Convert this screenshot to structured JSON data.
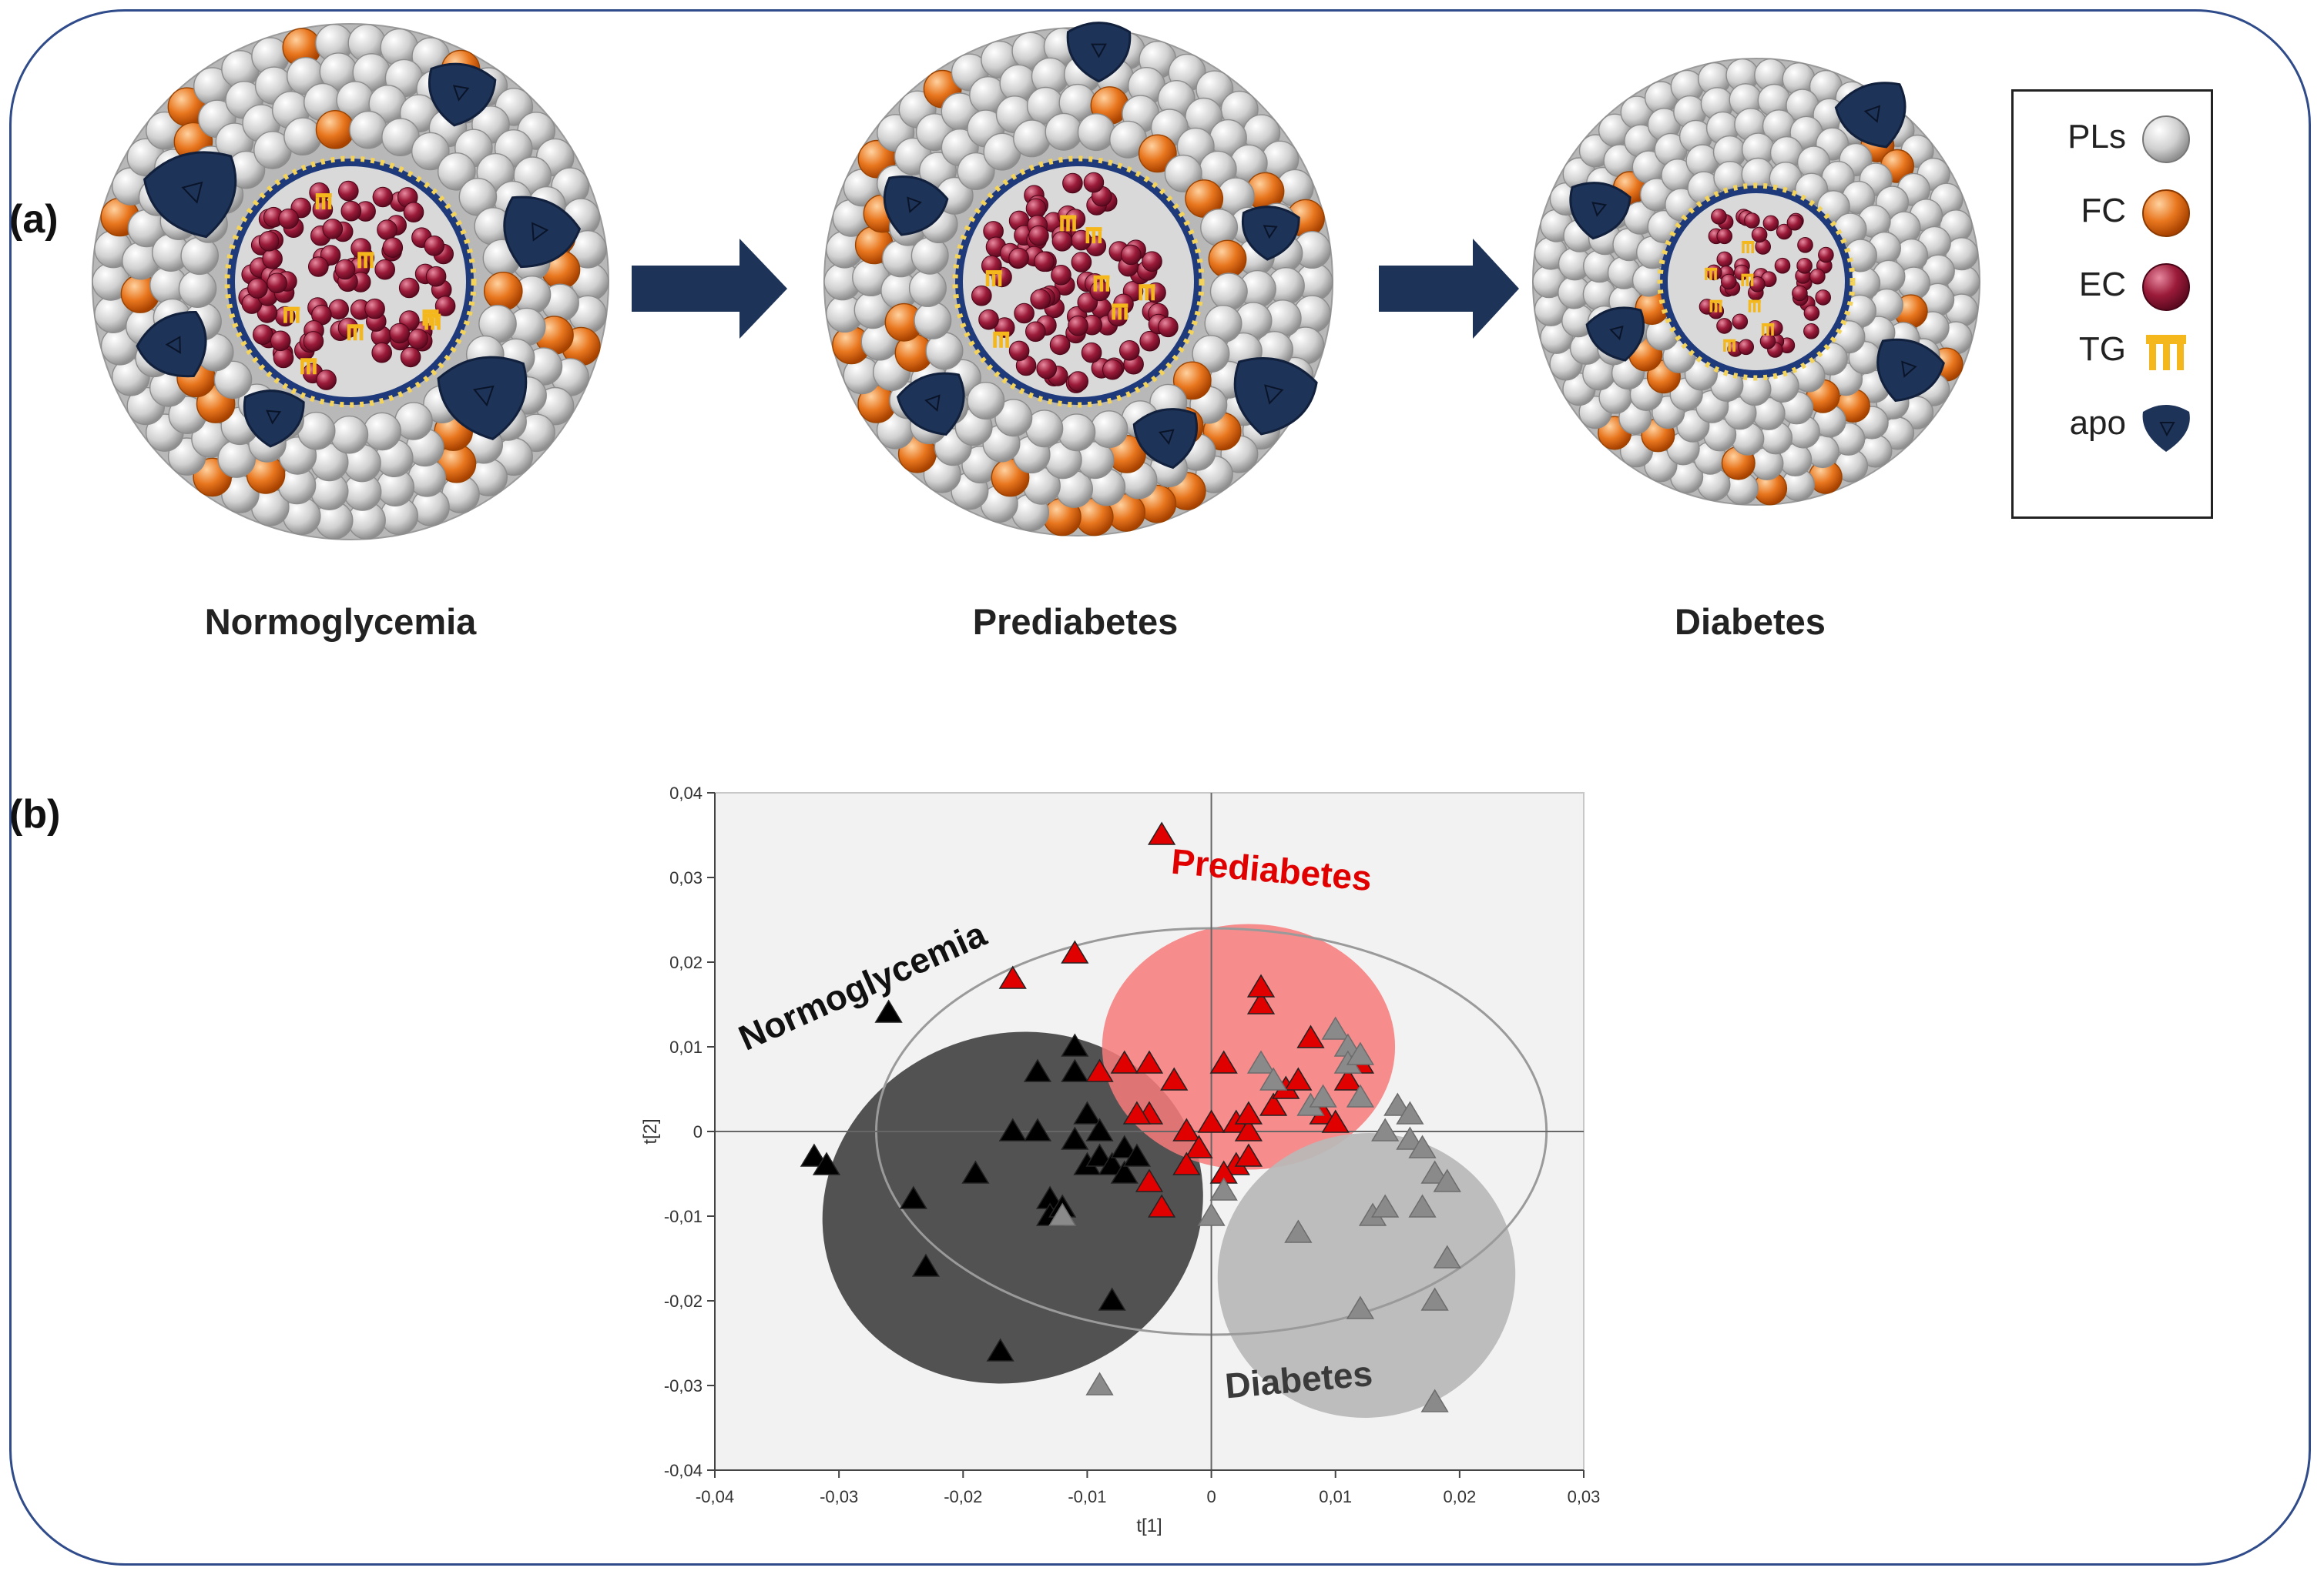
{
  "panels": {
    "a": "(a)",
    "b": "(b)"
  },
  "stages": [
    "Normoglycemia",
    "Prediabetes",
    "Diabetes"
  ],
  "legend": [
    {
      "label": "PLs",
      "icon": "phospholipid-sphere-icon"
    },
    {
      "label": "FC",
      "icon": "free-cholesterol-sphere-icon"
    },
    {
      "label": "EC",
      "icon": "esterified-cholesterol-sphere-icon"
    },
    {
      "label": "TG",
      "icon": "triglyceride-icon"
    },
    {
      "label": "apo",
      "icon": "apolipoprotein-icon"
    }
  ],
  "colors": {
    "frame": "#2f4b8a",
    "apo": "#1e3358",
    "pl": "#cfcfcf",
    "fc": "#e0711f",
    "ec": "#9b1b3a",
    "tg": "#f4b71c",
    "normoglycemia": "#000000",
    "prediabetes": "#e00000",
    "diabetes": "#8a8a8a"
  },
  "chart_data": {
    "type": "scatter",
    "xlabel": "t[1]",
    "ylabel": "t[2]",
    "xlim": [
      -0.04,
      0.03
    ],
    "ylim": [
      -0.04,
      0.04
    ],
    "xticks": [
      "-0,04",
      "-0,03",
      "-0,02",
      "-0,01",
      "0",
      "0,01",
      "0,02",
      "0,03"
    ],
    "yticks": [
      "0,04",
      "0,03",
      "0,02",
      "0,01",
      "0",
      "-0,01",
      "-0,02",
      "-0,03",
      "-0,04"
    ],
    "group_labels": {
      "normoglycemia": "Normoglycemia",
      "prediabetes": "Prediabetes",
      "diabetes": "Diabetes"
    },
    "series": [
      {
        "name": "Normoglycemia",
        "color": "#000000",
        "points": [
          [
            -0.032,
            -0.003
          ],
          [
            -0.031,
            -0.004
          ],
          [
            -0.026,
            0.014
          ],
          [
            -0.024,
            -0.008
          ],
          [
            -0.023,
            -0.016
          ],
          [
            -0.019,
            -0.005
          ],
          [
            -0.017,
            -0.026
          ],
          [
            -0.016,
            0.0
          ],
          [
            -0.014,
            0.007
          ],
          [
            -0.014,
            0.0
          ],
          [
            -0.013,
            -0.008
          ],
          [
            -0.013,
            -0.01
          ],
          [
            -0.012,
            -0.009
          ],
          [
            -0.011,
            -0.001
          ],
          [
            -0.011,
            0.01
          ],
          [
            -0.011,
            0.007
          ],
          [
            -0.01,
            -0.004
          ],
          [
            -0.01,
            0.002
          ],
          [
            -0.009,
            -0.003
          ],
          [
            -0.009,
            0.0
          ],
          [
            -0.008,
            -0.004
          ],
          [
            -0.008,
            -0.02
          ],
          [
            -0.007,
            -0.005
          ],
          [
            -0.007,
            -0.002
          ],
          [
            -0.006,
            -0.003
          ]
        ]
      },
      {
        "name": "Prediabetes",
        "color": "#e00000",
        "points": [
          [
            -0.004,
            0.035
          ],
          [
            -0.016,
            0.018
          ],
          [
            -0.011,
            0.021
          ],
          [
            -0.009,
            0.007
          ],
          [
            -0.007,
            0.008
          ],
          [
            -0.005,
            0.008
          ],
          [
            -0.004,
            -0.009
          ],
          [
            -0.005,
            -0.006
          ],
          [
            -0.003,
            0.006
          ],
          [
            -0.005,
            0.002
          ],
          [
            -0.006,
            0.002
          ],
          [
            -0.002,
            0.0
          ],
          [
            -0.001,
            -0.002
          ],
          [
            0.0,
            0.001
          ],
          [
            0.001,
            0.008
          ],
          [
            0.002,
            -0.004
          ],
          [
            0.002,
            0.001
          ],
          [
            0.003,
            0.0
          ],
          [
            0.003,
            0.002
          ],
          [
            0.004,
            0.015
          ],
          [
            0.004,
            0.017
          ],
          [
            0.005,
            0.003
          ],
          [
            0.006,
            0.005
          ],
          [
            0.007,
            0.006
          ],
          [
            0.008,
            0.011
          ],
          [
            0.009,
            0.002
          ],
          [
            0.01,
            0.001
          ],
          [
            0.011,
            0.006
          ],
          [
            0.012,
            0.008
          ],
          [
            0.001,
            -0.005
          ],
          [
            0.003,
            -0.003
          ],
          [
            -0.002,
            -0.004
          ]
        ]
      },
      {
        "name": "Diabetes",
        "color": "#8a8a8a",
        "points": [
          [
            -0.012,
            -0.01
          ],
          [
            -0.009,
            -0.03
          ],
          [
            0.0,
            -0.01
          ],
          [
            0.001,
            -0.007
          ],
          [
            0.004,
            0.008
          ],
          [
            0.005,
            0.006
          ],
          [
            0.007,
            -0.012
          ],
          [
            0.008,
            0.003
          ],
          [
            0.009,
            0.004
          ],
          [
            0.01,
            0.012
          ],
          [
            0.011,
            0.01
          ],
          [
            0.011,
            0.008
          ],
          [
            0.012,
            0.004
          ],
          [
            0.012,
            0.009
          ],
          [
            0.012,
            -0.021
          ],
          [
            0.013,
            -0.01
          ],
          [
            0.014,
            -0.009
          ],
          [
            0.014,
            0.0
          ],
          [
            0.015,
            0.003
          ],
          [
            0.016,
            -0.001
          ],
          [
            0.017,
            -0.002
          ],
          [
            0.017,
            -0.009
          ],
          [
            0.018,
            -0.005
          ],
          [
            0.018,
            -0.02
          ],
          [
            0.018,
            -0.032
          ],
          [
            0.019,
            -0.015
          ],
          [
            0.019,
            -0.006
          ],
          [
            0.016,
            0.002
          ]
        ]
      }
    ],
    "ellipses": [
      {
        "group": "Normoglycemia",
        "color": "#444444",
        "cx": -0.016,
        "cy": -0.009,
        "rx": 0.0155,
        "ry": 0.0205,
        "angle": -20
      },
      {
        "group": "Prediabetes",
        "color": "#f77a7a",
        "cx": 0.003,
        "cy": 0.01,
        "rx": 0.0118,
        "ry": 0.0145,
        "angle": 0
      },
      {
        "group": "Diabetes",
        "color": "#b9b9b9",
        "cx": 0.0125,
        "cy": -0.017,
        "rx": 0.012,
        "ry": 0.0168,
        "angle": -8
      },
      {
        "group": "Hotelling T2",
        "color": "none",
        "cx": 0.0,
        "cy": 0.0,
        "rx": 0.027,
        "ry": 0.024,
        "angle": 0
      }
    ]
  }
}
